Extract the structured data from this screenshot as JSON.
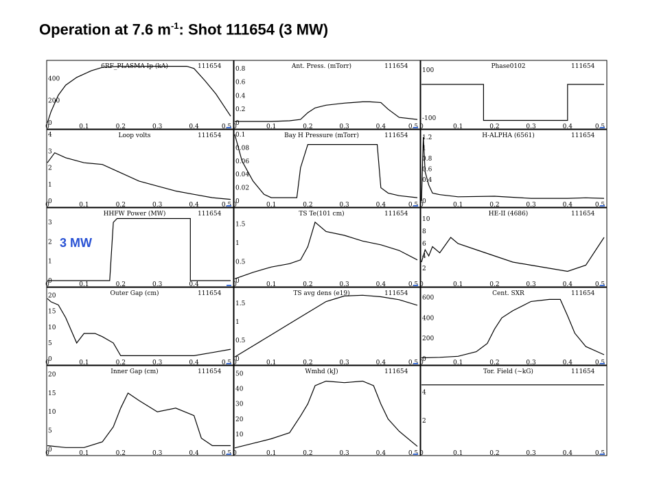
{
  "page": {
    "title_prefix": "Operation at 7.6 m",
    "title_superscript": "-1",
    "title_suffix": ": Shot 111654 (3 MW)",
    "annotation": "3 MW",
    "annotation_color": "#2952d4",
    "marker_color": "#3d6fd8"
  },
  "chart_data": [
    {
      "type": "line",
      "title": "6RF_PLASMA Ip (kA)",
      "shot": "111654",
      "xlim": [
        0,
        0.5
      ],
      "ylim": [
        0,
        520
      ],
      "yticks": [
        "0",
        "200",
        "400"
      ],
      "ytick_values": [
        0,
        200,
        400
      ],
      "xticks": [
        "0",
        "0.1",
        "0.2",
        "0.3",
        "0.4",
        "0.5"
      ],
      "series": [
        {
          "x": [
            0,
            0.01,
            0.03,
            0.05,
            0.08,
            0.1,
            0.12,
            0.15,
            0.2,
            0.25,
            0.3,
            0.35,
            0.38,
            0.4,
            0.43,
            0.46,
            0.48,
            0.5
          ],
          "y": [
            0,
            100,
            250,
            340,
            410,
            440,
            470,
            500,
            510,
            510,
            510,
            510,
            510,
            490,
            380,
            260,
            160,
            60
          ]
        }
      ]
    },
    {
      "type": "line",
      "title": "Ant. Press. (mTorr)",
      "shot": "111654",
      "xlim": [
        0,
        0.5
      ],
      "ylim": [
        0,
        0.85
      ],
      "yticks": [
        "0",
        "0.2",
        "0.4",
        "0.6",
        "0.8"
      ],
      "ytick_values": [
        0,
        0.2,
        0.4,
        0.6,
        0.8
      ],
      "xticks": [
        "0",
        "0.1",
        "0.2",
        "0.3",
        "0.4",
        "0.5"
      ],
      "series": [
        {
          "x": [
            0,
            0.05,
            0.1,
            0.15,
            0.18,
            0.2,
            0.22,
            0.25,
            0.3,
            0.35,
            0.37,
            0.4,
            0.42,
            0.45,
            0.5
          ],
          "y": [
            0.02,
            0.02,
            0.02,
            0.03,
            0.05,
            0.15,
            0.22,
            0.26,
            0.29,
            0.31,
            0.31,
            0.3,
            0.2,
            0.08,
            0.05
          ]
        }
      ]
    },
    {
      "type": "line",
      "title": "Phase0102",
      "shot": "111654",
      "xlim": [
        0,
        0.5
      ],
      "ylim": [
        -120,
        120
      ],
      "yticks": [
        "100",
        "-100"
      ],
      "ytick_values": [
        100,
        -100
      ],
      "xticks": [
        "0",
        "0.1",
        "0.2",
        "0.3",
        "0.4",
        "0.5"
      ],
      "series": [
        {
          "x": [
            0,
            0.17,
            0.17,
            0.4,
            0.4,
            0.5
          ],
          "y": [
            40,
            40,
            -110,
            -110,
            40,
            40
          ]
        }
      ]
    },
    {
      "type": "line",
      "title": "Loop volts",
      "shot": "111654",
      "xlim": [
        0,
        0.5
      ],
      "ylim": [
        0,
        4
      ],
      "yticks": [
        "0",
        "1",
        "2",
        "3",
        "4"
      ],
      "ytick_values": [
        0,
        1,
        2,
        3,
        4
      ],
      "xticks": [
        "0",
        "0.1",
        "0.2",
        "0.3",
        "0.4",
        "0.5"
      ],
      "series": [
        {
          "x": [
            0,
            0.02,
            0.05,
            0.1,
            0.15,
            0.2,
            0.25,
            0.3,
            0.35,
            0.4,
            0.45,
            0.5
          ],
          "y": [
            2.3,
            2.9,
            2.6,
            2.3,
            2.2,
            1.7,
            1.2,
            0.9,
            0.6,
            0.4,
            0.2,
            0.1
          ]
        }
      ]
    },
    {
      "type": "line",
      "title": "Bay H Pressure (mTorr)",
      "shot": "111654",
      "xlim": [
        0,
        0.5
      ],
      "ylim": [
        0,
        0.1
      ],
      "yticks": [
        "0",
        "0.02",
        "0.04",
        "0.06",
        "0.08",
        "0.1"
      ],
      "ytick_values": [
        0,
        0.02,
        0.04,
        0.06,
        0.08,
        0.1
      ],
      "xticks": [
        "0",
        "0.1",
        "0.2",
        "0.3",
        "0.4",
        "0.5"
      ],
      "series": [
        {
          "x": [
            0,
            0.02,
            0.05,
            0.08,
            0.1,
            0.15,
            0.17,
            0.18,
            0.2,
            0.3,
            0.39,
            0.4,
            0.42,
            0.45,
            0.5
          ],
          "y": [
            0.1,
            0.06,
            0.03,
            0.01,
            0.005,
            0.005,
            0.005,
            0.05,
            0.085,
            0.085,
            0.085,
            0.02,
            0.012,
            0.008,
            0.005
          ]
        }
      ]
    },
    {
      "type": "line",
      "title": "H-ALPHA (6561)",
      "shot": "111654",
      "xlim": [
        0,
        0.5
      ],
      "ylim": [
        0,
        1.25
      ],
      "yticks": [
        "0",
        "0.4",
        "0.6",
        "0.8",
        "1",
        "1.2"
      ],
      "ytick_values": [
        0,
        0.4,
        0.6,
        0.8,
        1,
        1.2
      ],
      "xticks": [
        "0",
        "0.1",
        "0.2",
        "0.3",
        "0.4",
        "0.5"
      ],
      "series": [
        {
          "x": [
            0,
            0.005,
            0.01,
            0.02,
            0.03,
            0.05,
            0.1,
            0.2,
            0.3,
            0.4,
            0.45,
            0.5
          ],
          "y": [
            0,
            1.2,
            0.55,
            0.3,
            0.15,
            0.12,
            0.08,
            0.09,
            0.05,
            0.05,
            0.06,
            0.05
          ]
        }
      ]
    },
    {
      "type": "line",
      "title": "HHFW Power (MW)",
      "shot": "111654",
      "xlim": [
        0,
        0.5
      ],
      "ylim": [
        0,
        3.5
      ],
      "yticks": [
        "0",
        "1",
        "2",
        "3"
      ],
      "ytick_values": [
        0,
        1,
        2,
        3
      ],
      "xticks": [
        "0",
        "0.1",
        "0.2",
        "0.3",
        "0.4"
      ],
      "series": [
        {
          "x": [
            0,
            0.17,
            0.18,
            0.19,
            0.39,
            0.39,
            0.5
          ],
          "y": [
            0,
            0,
            3,
            3.2,
            3.2,
            0,
            0
          ]
        }
      ]
    },
    {
      "type": "line",
      "title": "TS Te(101 cm)",
      "shot": "111654",
      "xlim": [
        0,
        0.5
      ],
      "ylim": [
        0,
        1.8
      ],
      "yticks": [
        "0",
        "0.5",
        "1",
        "1.5"
      ],
      "ytick_values": [
        0,
        0.5,
        1,
        1.5
      ],
      "xticks": [
        "0",
        "0.1",
        "0.2",
        "0.3",
        "0.4",
        "0.5"
      ],
      "series": [
        {
          "x": [
            0,
            0.05,
            0.1,
            0.15,
            0.18,
            0.2,
            0.22,
            0.25,
            0.3,
            0.35,
            0.4,
            0.45,
            0.5
          ],
          "y": [
            0.05,
            0.22,
            0.36,
            0.45,
            0.55,
            0.9,
            1.55,
            1.3,
            1.2,
            1.05,
            0.95,
            0.8,
            0.55
          ]
        }
      ]
    },
    {
      "type": "line",
      "title": "HE-II (4686)",
      "shot": "111654",
      "xlim": [
        0,
        0.5
      ],
      "ylim": [
        0,
        11
      ],
      "yticks": [
        "2",
        "4",
        "6",
        "8",
        "10"
      ],
      "ytick_values": [
        2,
        4,
        6,
        8,
        10
      ],
      "xticks": [
        "0",
        "0.1",
        "0.2",
        "0.3",
        "0.4",
        "0.5"
      ],
      "series": [
        {
          "x": [
            0,
            0.01,
            0.02,
            0.03,
            0.05,
            0.08,
            0.1,
            0.15,
            0.2,
            0.25,
            0.3,
            0.35,
            0.4,
            0.45,
            0.5
          ],
          "y": [
            3,
            5,
            4,
            5.5,
            4.5,
            7,
            6,
            5,
            4,
            3,
            2.5,
            2,
            1.5,
            2.5,
            7
          ]
        }
      ]
    },
    {
      "type": "line",
      "title": "Outer Gap (cm)",
      "shot": "111654",
      "xlim": [
        0,
        0.5
      ],
      "ylim": [
        0,
        21
      ],
      "yticks": [
        "0",
        "5",
        "10",
        "15",
        "20"
      ],
      "ytick_values": [
        0,
        5,
        10,
        15,
        20
      ],
      "xticks": [
        "0",
        "0.1",
        "0.2",
        "0.3",
        "0.4",
        "0.5"
      ],
      "series": [
        {
          "x": [
            0,
            0.01,
            0.03,
            0.05,
            0.08,
            0.1,
            0.13,
            0.15,
            0.18,
            0.2,
            0.25,
            0.3,
            0.35,
            0.4,
            0.45,
            0.5
          ],
          "y": [
            19,
            18,
            17,
            13,
            5,
            8,
            8,
            7,
            5,
            1,
            1,
            1,
            1,
            1,
            2,
            3
          ]
        }
      ]
    },
    {
      "type": "line",
      "title": "TS avg dens (e19)",
      "shot": "111654",
      "xlim": [
        0,
        0.5
      ],
      "ylim": [
        0,
        1.8
      ],
      "yticks": [
        "0",
        "0.5",
        "1",
        "1.5"
      ],
      "ytick_values": [
        0,
        0.5,
        1,
        1.5
      ],
      "xticks": [
        "0",
        "0.1",
        "0.2",
        "0.3",
        "0.4",
        "0.5"
      ],
      "series": [
        {
          "x": [
            0,
            0.05,
            0.1,
            0.15,
            0.2,
            0.25,
            0.3,
            0.35,
            0.4,
            0.45,
            0.5
          ],
          "y": [
            0.05,
            0.35,
            0.65,
            0.95,
            1.25,
            1.55,
            1.7,
            1.72,
            1.68,
            1.6,
            1.45
          ]
        }
      ]
    },
    {
      "type": "line",
      "title": "Cent. SXR",
      "shot": "111654",
      "xlim": [
        0,
        0.5
      ],
      "ylim": [
        0,
        650
      ],
      "yticks": [
        "0",
        "200",
        "400",
        "600"
      ],
      "ytick_values": [
        0,
        200,
        400,
        600
      ],
      "xticks": [
        "0",
        "0.1",
        "0.2",
        "0.3",
        "0.4",
        "0.5"
      ],
      "series": [
        {
          "x": [
            0,
            0.05,
            0.1,
            0.15,
            0.18,
            0.2,
            0.22,
            0.25,
            0.3,
            0.35,
            0.38,
            0.4,
            0.42,
            0.45,
            0.5
          ],
          "y": [
            10,
            15,
            25,
            70,
            150,
            290,
            400,
            470,
            560,
            580,
            580,
            420,
            250,
            120,
            40
          ]
        }
      ]
    },
    {
      "type": "line",
      "title": "Inner Gap (cm)",
      "shot": "111654",
      "xlim": [
        0,
        0.5
      ],
      "ylim": [
        0,
        21
      ],
      "yticks": [
        "0",
        "5",
        "10",
        "15",
        "20"
      ],
      "ytick_values": [
        0,
        5,
        10,
        15,
        20
      ],
      "xticks": [
        "0",
        "0.1",
        "0.2",
        "0.3",
        "0.4",
        "0.5"
      ],
      "series": [
        {
          "x": [
            0,
            0.05,
            0.1,
            0.15,
            0.18,
            0.2,
            0.22,
            0.25,
            0.3,
            0.35,
            0.4,
            0.42,
            0.45,
            0.5
          ],
          "y": [
            1,
            0.5,
            0.5,
            2,
            6,
            11,
            15,
            13,
            10,
            11,
            9,
            3,
            1,
            1
          ]
        }
      ]
    },
    {
      "type": "line",
      "title": "Wmhd (kJ)",
      "shot": "111654",
      "xlim": [
        0,
        0.5
      ],
      "ylim": [
        0,
        52
      ],
      "yticks": [
        "10",
        "20",
        "30",
        "40",
        "50"
      ],
      "ytick_values": [
        10,
        20,
        30,
        40,
        50
      ],
      "xticks": [
        "0",
        "0.1",
        "0.2",
        "0.3",
        "0.4",
        "0.5"
      ],
      "series": [
        {
          "x": [
            0,
            0.05,
            0.1,
            0.15,
            0.18,
            0.2,
            0.22,
            0.25,
            0.3,
            0.35,
            0.38,
            0.4,
            0.42,
            0.45,
            0.5
          ],
          "y": [
            1,
            4,
            7,
            11,
            22,
            30,
            42,
            45,
            44,
            45,
            42,
            30,
            20,
            12,
            2
          ]
        }
      ]
    },
    {
      "type": "line",
      "title": "Tor. Field (~kG)",
      "shot": "111654",
      "xlim": [
        0,
        0.5
      ],
      "ylim": [
        0,
        5.5
      ],
      "yticks": [
        "2",
        "4"
      ],
      "ytick_values": [
        2,
        4
      ],
      "xticks": [
        "0",
        "0.1",
        "0.2",
        "0.3",
        "0.4",
        "0.5"
      ],
      "series": [
        {
          "x": [
            0,
            0.1,
            0.2,
            0.3,
            0.4,
            0.5
          ],
          "y": [
            4.5,
            4.5,
            4.5,
            4.5,
            4.5,
            4.5
          ]
        }
      ]
    }
  ]
}
